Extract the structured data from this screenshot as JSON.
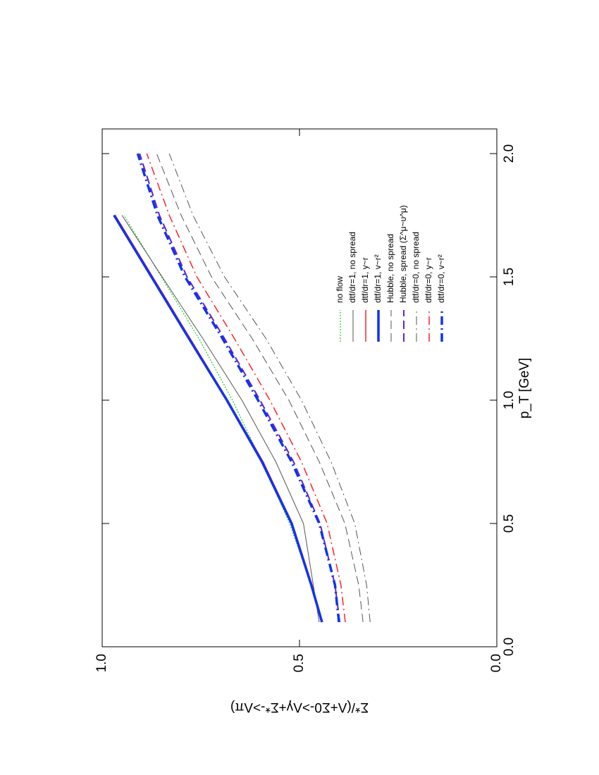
{
  "chart_data": {
    "type": "line",
    "xlabel": "p_T [GeV]",
    "ylabel": "Σ*/(Λ+Σ0->Λγ+Σ*->Λπ)",
    "x": [
      0.1,
      0.25,
      0.5,
      0.75,
      1.0,
      1.25,
      1.5,
      1.75,
      2.0
    ],
    "xlim": [
      0,
      2.1
    ],
    "ylim": [
      0,
      1
    ],
    "xticks": [
      {
        "value": 0,
        "label": "0.0"
      },
      0.5,
      {
        "value": 1,
        "label": "1.0"
      },
      1.5,
      {
        "value": 2,
        "label": "2.0"
      }
    ],
    "yticks": [
      {
        "value": 0,
        "label": "0.0"
      },
      0.5,
      {
        "value": 1,
        "label": "1.0"
      }
    ],
    "series": [
      {
        "name": "no flow",
        "color": "#22cc22",
        "style": "dotted",
        "width": 1.2,
        "values": [
          0.445,
          0.47,
          0.525,
          0.595,
          0.67,
          0.755,
          0.85,
          0.945,
          null
        ]
      },
      {
        "name": "dtf/dr=1, no spread",
        "color": "#555555",
        "style": "solid",
        "width": 1,
        "values": [
          0.45,
          0.465,
          0.49,
          0.56,
          0.646,
          0.745,
          0.848,
          0.95,
          null
        ]
      },
      {
        "name": "dtf/dr=1, y~r",
        "color": "#ff2222",
        "style": "solid",
        "width": 1.5,
        "values": [
          0.442,
          0.468,
          0.518,
          0.592,
          0.682,
          0.777,
          0.872,
          0.967,
          null
        ]
      },
      {
        "name": "dtf/dr=1, v~r²",
        "color": "#1133ee",
        "style": "solid",
        "width": 3.5,
        "values": [
          0.443,
          0.47,
          0.52,
          0.595,
          0.684,
          0.78,
          0.875,
          0.97,
          null
        ]
      },
      {
        "name": "Hubble, no spread",
        "color": "#555555",
        "style": "dashed",
        "width": 1,
        "values": [
          0.339,
          0.35,
          0.385,
          0.45,
          0.527,
          0.62,
          0.723,
          0.8,
          0.862
        ]
      },
      {
        "name": "Hubble, spread (Σ^μ~υ^μ)",
        "color": "#6622cc",
        "style": "dashed",
        "width": 2,
        "values": [
          0.398,
          0.41,
          0.448,
          0.515,
          0.6,
          0.69,
          0.785,
          0.855,
          0.905
        ]
      },
      {
        "name": "dtf/dr=0, no spread",
        "color": "#555555",
        "style": "dashdot",
        "width": 1,
        "values": [
          0.321,
          0.33,
          0.36,
          0.42,
          0.495,
          0.585,
          0.69,
          0.77,
          0.83
        ]
      },
      {
        "name": "dtf/dr=0, y~r",
        "color": "#ff2222",
        "style": "dashdot",
        "width": 1.5,
        "values": [
          0.384,
          0.395,
          0.43,
          0.495,
          0.575,
          0.665,
          0.76,
          0.83,
          0.887
        ]
      },
      {
        "name": "dtf/dr=0, v~r²",
        "color": "#1133ee",
        "style": "dashdot",
        "width": 3.5,
        "values": [
          0.4,
          0.41,
          0.45,
          0.52,
          0.605,
          0.695,
          0.79,
          0.86,
          0.91
        ]
      }
    ]
  }
}
